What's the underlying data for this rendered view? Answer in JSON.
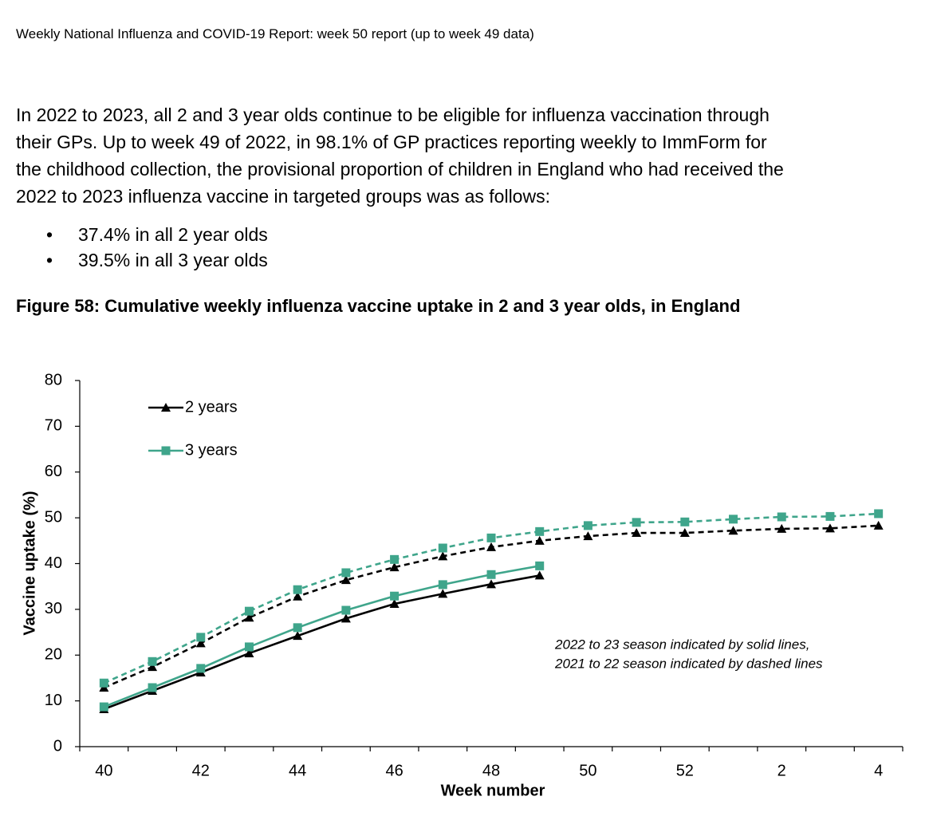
{
  "header": "Weekly National Influenza and COVID-19 Report: week 50 report (up to week 49 data)",
  "paragraph": [
    "In 2022 to 2023, all 2 and 3 year olds continue to be eligible for influenza vaccination through",
    "their GPs. Up to week 49 of 2022, in 98.1% of GP practices reporting weekly to ImmForm for",
    "the childhood collection, the provisional proportion of children in England who had received the",
    "2022 to 2023 influenza vaccine in targeted groups was as follows:"
  ],
  "bullets": [
    "37.4% in all 2 year olds",
    "39.5% in all 3 year olds"
  ],
  "figure_title": "Figure 58: Cumulative weekly influenza vaccine uptake in 2 and 3 year olds, in England",
  "chart_data": {
    "type": "line",
    "x_label": "Week number",
    "y_label": "Vaccine uptake (%)",
    "annotation": [
      "2022 to 23 season indicated by solid lines,",
      "2021 to 22 season indicated by dashed lines"
    ],
    "categories": [
      "40",
      null,
      "42",
      null,
      "44",
      null,
      "46",
      null,
      "48",
      null,
      "50",
      null,
      "52",
      null,
      "2",
      null,
      "4"
    ],
    "ylim": [
      0,
      80
    ],
    "yticks": [
      0,
      10,
      20,
      30,
      40,
      50,
      60,
      70,
      80
    ],
    "series": [
      {
        "name": "2 years",
        "color": "#000000",
        "marker": "triangle",
        "values": [
          8.2,
          12.2,
          16.2,
          20.4,
          24.2,
          28.0,
          31.2,
          33.4,
          35.5,
          37.4,
          null,
          null,
          null,
          null,
          null,
          null,
          null
        ],
        "dashed_values": [
          12.9,
          17.4,
          22.6,
          28.2,
          32.8,
          36.4,
          39.2,
          41.6,
          43.6,
          45.0,
          46.0,
          46.7,
          46.7,
          47.2,
          47.6,
          47.7,
          48.3
        ]
      },
      {
        "name": "3 years",
        "color": "#3fa58b",
        "marker": "square",
        "values": [
          8.7,
          12.9,
          17.1,
          21.8,
          26.0,
          29.8,
          32.9,
          35.4,
          37.6,
          39.5,
          null,
          null,
          null,
          null,
          null,
          null,
          null
        ],
        "dashed_values": [
          13.9,
          18.6,
          23.9,
          29.6,
          34.3,
          38.0,
          40.9,
          43.4,
          45.6,
          47.0,
          48.3,
          49.0,
          49.1,
          49.7,
          50.2,
          50.3,
          50.9
        ]
      }
    ]
  }
}
